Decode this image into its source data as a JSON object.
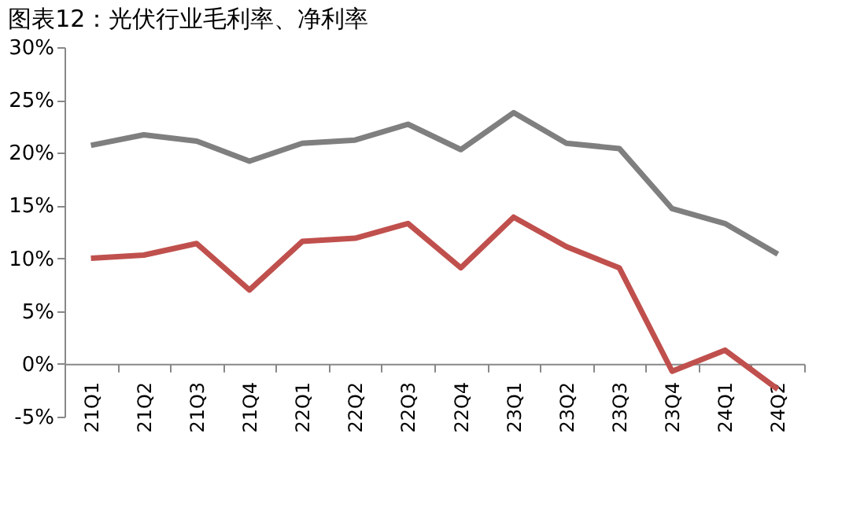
{
  "chart_data": {
    "type": "line",
    "title": "图表12：光伏行业毛利率、净利率",
    "categories": [
      "21Q1",
      "21Q2",
      "21Q3",
      "21Q4",
      "22Q1",
      "22Q2",
      "22Q3",
      "22Q4",
      "23Q1",
      "23Q2",
      "23Q3",
      "23Q4",
      "24Q1",
      "24Q2"
    ],
    "series": [
      {
        "color": "#7f7f7f",
        "values": [
          20.7,
          21.7,
          21.1,
          19.2,
          20.9,
          21.2,
          22.7,
          20.3,
          23.8,
          20.9,
          20.4,
          14.7,
          13.3,
          10.4
        ]
      },
      {
        "color": "#c0504d",
        "values": [
          10.0,
          10.3,
          11.4,
          7.0,
          11.6,
          11.9,
          13.3,
          9.1,
          13.9,
          11.1,
          9.1,
          -0.7,
          1.3,
          -2.4
        ]
      }
    ],
    "ylim": [
      -5,
      30
    ],
    "yticks": [
      {
        "value": -5,
        "label": "-5%"
      },
      {
        "value": 0,
        "label": "0%"
      },
      {
        "value": 5,
        "label": "5%"
      },
      {
        "value": 10,
        "label": "10%"
      },
      {
        "value": 15,
        "label": "15%"
      },
      {
        "value": 20,
        "label": "20%"
      },
      {
        "value": 25,
        "label": "25%"
      },
      {
        "value": 30,
        "label": "30%"
      }
    ],
    "grid": false,
    "marker": "none",
    "line_style": "solid"
  }
}
